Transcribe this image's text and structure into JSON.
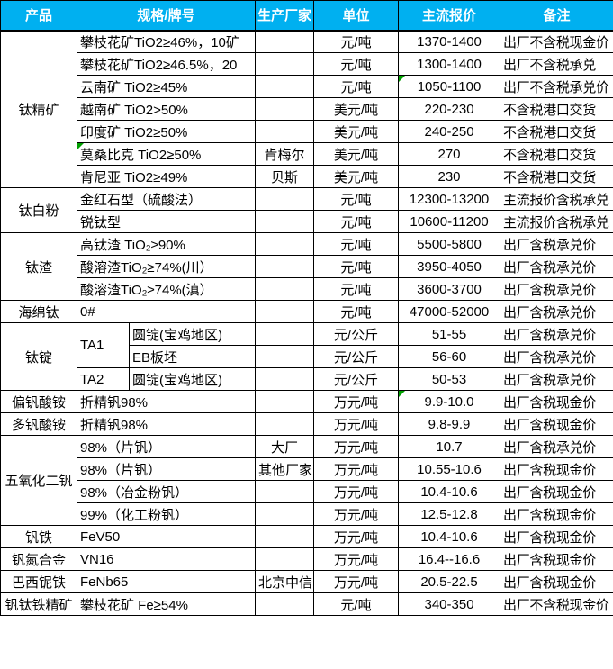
{
  "page": {
    "background": "#ffffff"
  },
  "table": {
    "header": {
      "bg_color": "#00B0F0",
      "text_color": "#ffffff",
      "columns": [
        "产品",
        "规格/牌号",
        "生产厂家",
        "单位",
        "主流报价",
        "备注"
      ]
    },
    "flag_color": "#00A000",
    "flag_icon": "error-indicator-triangle",
    "rows": [
      {
        "product": "钛精矿",
        "product_span": 7,
        "spec": "攀枝花矿TiO2≥46%，10矿",
        "maker": "",
        "unit": "元/吨",
        "price": "1370-1400",
        "note": "出厂不含税现金价"
      },
      {
        "spec": "攀枝花矿TiO2≥46.5%，20",
        "maker": "",
        "unit": "元/吨",
        "price": "1300-1400",
        "note": "出厂不含税承兑"
      },
      {
        "spec": "云南矿 TiO2≥45%",
        "maker": "",
        "unit": "元/吨",
        "price": "1050-1100",
        "note": "出厂不含税承兑价",
        "price_flag": true
      },
      {
        "spec": "越南矿 TiO2>50%",
        "maker": "",
        "unit": "美元/吨",
        "price": "220-230",
        "note": "不含税港口交货"
      },
      {
        "spec": "印度矿 TiO2≥50%",
        "maker": "",
        "unit": "美元/吨",
        "price": "240-250",
        "note": "不含税港口交货"
      },
      {
        "spec": "莫桑比克 TiO2≥50%",
        "spec_flag": true,
        "maker": "肯梅尔",
        "unit": "美元/吨",
        "price": "270",
        "note": "不含税港口交货"
      },
      {
        "spec": "肯尼亚 TiO2≥49%",
        "maker": "贝斯",
        "unit": "美元/吨",
        "price": "230",
        "note": "不含税港口交货"
      },
      {
        "product": "钛白粉",
        "product_span": 2,
        "spec": "金红石型（硫酸法）",
        "maker": "",
        "unit": "元/吨",
        "price": "12300-13200",
        "note": "主流报价含税承兑"
      },
      {
        "spec": "锐钛型",
        "maker": "",
        "unit": "元/吨",
        "price": "10600-11200",
        "note": "主流报价含税承兑"
      },
      {
        "product": "钛渣",
        "product_span": 3,
        "spec": "高钛渣 TiO₂≥90%",
        "maker": "",
        "unit": "元/吨",
        "price": "5500-5800",
        "note": "出厂含税承兑价"
      },
      {
        "spec": "酸溶渣TiO₂≥74%(川）",
        "maker": "",
        "unit": "元/吨",
        "price": "3950-4050",
        "note": "出厂含税承兑价"
      },
      {
        "spec": "酸溶渣TiO₂≥74%(滇）",
        "maker": "",
        "unit": "元/吨",
        "price": "3600-3700",
        "note": "出厂含税承兑价"
      },
      {
        "product": "海绵钛",
        "product_span": 1,
        "spec": "0#",
        "maker": "",
        "unit": "元/吨",
        "price": "47000-52000",
        "note": "出厂含税承兑价"
      },
      {
        "product": "钛锭",
        "product_span": 3,
        "spec_a": "TA1",
        "spec_a_span": 2,
        "spec_b": "圆锭(宝鸡地区)",
        "maker": "",
        "unit": "元/公斤",
        "price": "51-55",
        "note": "出厂含税承兑价"
      },
      {
        "spec_b": "EB板坯",
        "maker": "",
        "unit": "元/公斤",
        "price": "56-60",
        "note": "出厂含税承兑价"
      },
      {
        "spec_a": "TA2",
        "spec_a_span": 1,
        "spec_b": "圆锭(宝鸡地区)",
        "maker": "",
        "unit": "元/公斤",
        "price": "50-53",
        "note": "出厂含税承兑价"
      },
      {
        "product": "偏钒酸铵",
        "product_span": 1,
        "spec": "折精钒98%",
        "maker": "",
        "unit": "万元/吨",
        "price": "9.9-10.0",
        "note": "出厂含税现金价",
        "price_flag": true
      },
      {
        "product": "多钒酸铵",
        "product_span": 1,
        "spec": "折精钒98%",
        "maker": "",
        "unit": "万元/吨",
        "price": "9.8-9.9",
        "note": "出厂含税现金价"
      },
      {
        "product": "五氧化二钒",
        "product_span": 4,
        "spec": "98%（片钒）",
        "maker": "大厂",
        "unit": "万元/吨",
        "price": "10.7",
        "note": "出厂含税承兑价"
      },
      {
        "spec": "98%（片钒）",
        "maker": "其他厂家",
        "unit": "万元/吨",
        "price": "10.55-10.6",
        "note": "出厂含税现金价"
      },
      {
        "spec": "98%（冶金粉钒）",
        "maker": "",
        "unit": "万元/吨",
        "price": "10.4-10.6",
        "note": "出厂含税现金价"
      },
      {
        "spec": "99%（化工粉钒）",
        "maker": "",
        "unit": "万元/吨",
        "price": "12.5-12.8",
        "note": "出厂含税现金价"
      },
      {
        "product": "钒铁",
        "product_span": 1,
        "spec": "FeV50",
        "maker": "",
        "unit": "万元/吨",
        "price": "10.4-10.6",
        "note": "出厂含税现金价"
      },
      {
        "product": "钒氮合金",
        "product_span": 1,
        "spec": "VN16",
        "maker": "",
        "unit": "万元/吨",
        "price": "16.4--16.6",
        "note": "出厂含税现金价"
      },
      {
        "product": "巴西铌铁",
        "product_span": 1,
        "spec": "FeNb65",
        "maker": "北京中信",
        "unit": "万元/吨",
        "price": "20.5-22.5",
        "note": "出厂含税现金价"
      },
      {
        "product": "钒钛铁精矿",
        "product_span": 1,
        "spec": "攀枝花矿 Fe≥54%",
        "maker": "",
        "unit": "元/吨",
        "price": "340-350",
        "note": "出厂不含税现金价"
      }
    ]
  }
}
